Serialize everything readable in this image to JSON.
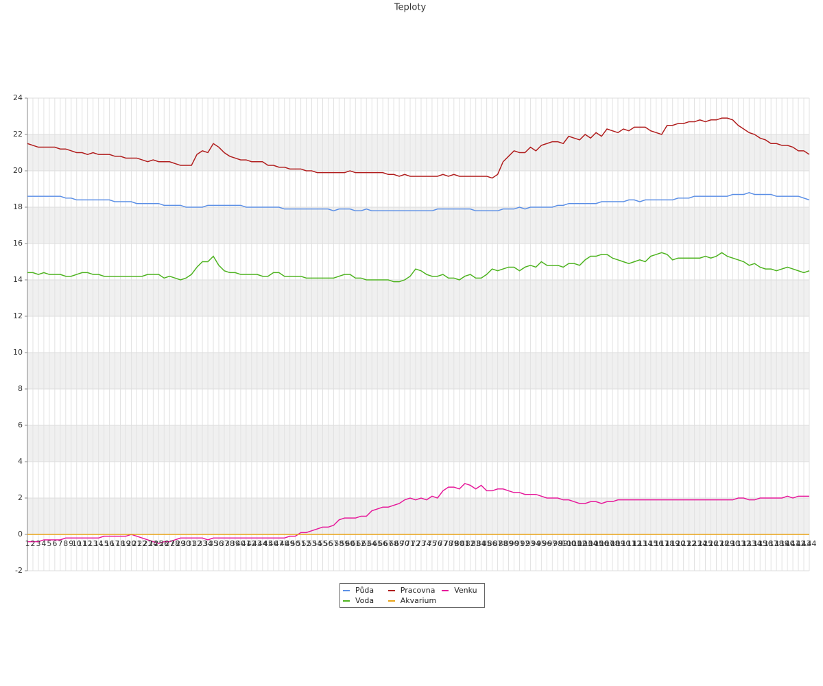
{
  "chart_data": {
    "type": "line",
    "title": "Teploty",
    "categories": [
      "1",
      "2",
      "3",
      "4",
      "5",
      "6",
      "7",
      "8",
      "9",
      "10",
      "11",
      "12",
      "13",
      "14",
      "15",
      "16",
      "17",
      "18",
      "19",
      "20",
      "21",
      "22",
      "23",
      "24",
      "25",
      "26",
      "27",
      "28",
      "29",
      "30",
      "31",
      "32",
      "33",
      "34",
      "35",
      "36",
      "37",
      "38",
      "39",
      "40",
      "41",
      "42",
      "43",
      "44",
      "45",
      "46",
      "47",
      "48",
      "49",
      "50",
      "51",
      "52",
      "53",
      "54",
      "55",
      "56",
      "57",
      "58",
      "59",
      "60",
      "61",
      "62",
      "63",
      "64",
      "65",
      "66",
      "67",
      "68",
      "69",
      "70",
      "71",
      "72",
      "73",
      "74",
      "75",
      "76",
      "77",
      "78",
      "79",
      "80",
      "81",
      "82",
      "83",
      "84",
      "85",
      "86",
      "87",
      "88",
      "89",
      "90",
      "91",
      "92",
      "93",
      "94",
      "95",
      "96",
      "97",
      "98",
      "99",
      "100",
      "101",
      "102",
      "103",
      "104",
      "105",
      "106",
      "107",
      "108",
      "109",
      "110",
      "111",
      "112",
      "113",
      "114",
      "115",
      "116",
      "117",
      "118",
      "119",
      "120",
      "121",
      "122",
      "123",
      "124",
      "125",
      "126",
      "127",
      "128",
      "129",
      "130",
      "131",
      "132",
      "133",
      "134",
      "135",
      "136",
      "137",
      "138",
      "139",
      "140",
      "141",
      "142",
      "143",
      "144"
    ],
    "series": [
      {
        "name": "Půda",
        "color": "#5b8fe6",
        "values": [
          18.6,
          18.6,
          18.6,
          18.6,
          18.6,
          18.6,
          18.6,
          18.5,
          18.5,
          18.4,
          18.4,
          18.4,
          18.4,
          18.4,
          18.4,
          18.4,
          18.3,
          18.3,
          18.3,
          18.3,
          18.2,
          18.2,
          18.2,
          18.2,
          18.2,
          18.1,
          18.1,
          18.1,
          18.1,
          18.0,
          18.0,
          18.0,
          18.0,
          18.1,
          18.1,
          18.1,
          18.1,
          18.1,
          18.1,
          18.1,
          18.0,
          18.0,
          18.0,
          18.0,
          18.0,
          18.0,
          18.0,
          17.9,
          17.9,
          17.9,
          17.9,
          17.9,
          17.9,
          17.9,
          17.9,
          17.9,
          17.8,
          17.9,
          17.9,
          17.9,
          17.8,
          17.8,
          17.9,
          17.8,
          17.8,
          17.8,
          17.8,
          17.8,
          17.8,
          17.8,
          17.8,
          17.8,
          17.8,
          17.8,
          17.8,
          17.9,
          17.9,
          17.9,
          17.9,
          17.9,
          17.9,
          17.9,
          17.8,
          17.8,
          17.8,
          17.8,
          17.8,
          17.9,
          17.9,
          17.9,
          18.0,
          17.9,
          18.0,
          18.0,
          18.0,
          18.0,
          18.0,
          18.1,
          18.1,
          18.2,
          18.2,
          18.2,
          18.2,
          18.2,
          18.2,
          18.3,
          18.3,
          18.3,
          18.3,
          18.3,
          18.4,
          18.4,
          18.3,
          18.4,
          18.4,
          18.4,
          18.4,
          18.4,
          18.4,
          18.5,
          18.5,
          18.5,
          18.6,
          18.6,
          18.6,
          18.6,
          18.6,
          18.6,
          18.6,
          18.7,
          18.7,
          18.7,
          18.8,
          18.7,
          18.7,
          18.7,
          18.7,
          18.6,
          18.6,
          18.6,
          18.6,
          18.6,
          18.5,
          18.4
        ]
      },
      {
        "name": "Pracovna",
        "color": "#b01c1c",
        "values": [
          21.5,
          21.4,
          21.3,
          21.3,
          21.3,
          21.3,
          21.2,
          21.2,
          21.1,
          21.0,
          21.0,
          20.9,
          21.0,
          20.9,
          20.9,
          20.9,
          20.8,
          20.8,
          20.7,
          20.7,
          20.7,
          20.6,
          20.5,
          20.6,
          20.5,
          20.5,
          20.5,
          20.4,
          20.3,
          20.3,
          20.3,
          20.9,
          21.1,
          21.0,
          21.5,
          21.3,
          21.0,
          20.8,
          20.7,
          20.6,
          20.6,
          20.5,
          20.5,
          20.5,
          20.3,
          20.3,
          20.2,
          20.2,
          20.1,
          20.1,
          20.1,
          20.0,
          20.0,
          19.9,
          19.9,
          19.9,
          19.9,
          19.9,
          19.9,
          20.0,
          19.9,
          19.9,
          19.9,
          19.9,
          19.9,
          19.9,
          19.8,
          19.8,
          19.7,
          19.8,
          19.7,
          19.7,
          19.7,
          19.7,
          19.7,
          19.7,
          19.8,
          19.7,
          19.8,
          19.7,
          19.7,
          19.7,
          19.7,
          19.7,
          19.7,
          19.6,
          19.8,
          20.5,
          20.8,
          21.1,
          21.0,
          21.0,
          21.3,
          21.1,
          21.4,
          21.5,
          21.6,
          21.6,
          21.5,
          21.9,
          21.8,
          21.7,
          22.0,
          21.8,
          22.1,
          21.9,
          22.3,
          22.2,
          22.1,
          22.3,
          22.2,
          22.4,
          22.4,
          22.4,
          22.2,
          22.1,
          22.0,
          22.5,
          22.5,
          22.6,
          22.6,
          22.7,
          22.7,
          22.8,
          22.7,
          22.8,
          22.8,
          22.9,
          22.9,
          22.8,
          22.5,
          22.3,
          22.1,
          22.0,
          21.8,
          21.7,
          21.5,
          21.5,
          21.4,
          21.4,
          21.3,
          21.1,
          21.1,
          20.9
        ]
      },
      {
        "name": "Venku",
        "color": "#e6199a",
        "values": [
          -0.4,
          -0.4,
          -0.4,
          -0.3,
          -0.3,
          -0.3,
          -0.3,
          -0.2,
          -0.2,
          -0.2,
          -0.2,
          -0.2,
          -0.2,
          -0.2,
          -0.1,
          -0.1,
          -0.1,
          -0.1,
          -0.1,
          0.0,
          -0.1,
          -0.2,
          -0.3,
          -0.4,
          -0.5,
          -0.4,
          -0.4,
          -0.3,
          -0.2,
          -0.2,
          -0.2,
          -0.2,
          -0.2,
          -0.3,
          -0.2,
          -0.2,
          -0.2,
          -0.2,
          -0.2,
          -0.2,
          -0.2,
          -0.2,
          -0.2,
          -0.2,
          -0.2,
          -0.2,
          -0.2,
          -0.2,
          -0.1,
          -0.1,
          0.1,
          0.1,
          0.2,
          0.3,
          0.4,
          0.4,
          0.5,
          0.8,
          0.9,
          0.9,
          0.9,
          1.0,
          1.0,
          1.3,
          1.4,
          1.5,
          1.5,
          1.6,
          1.7,
          1.9,
          2.0,
          1.9,
          2.0,
          1.9,
          2.1,
          2.0,
          2.4,
          2.6,
          2.6,
          2.5,
          2.8,
          2.7,
          2.5,
          2.7,
          2.4,
          2.4,
          2.5,
          2.5,
          2.4,
          2.3,
          2.3,
          2.2,
          2.2,
          2.2,
          2.1,
          2.0,
          2.0,
          2.0,
          1.9,
          1.9,
          1.8,
          1.7,
          1.7,
          1.8,
          1.8,
          1.7,
          1.8,
          1.8,
          1.9,
          1.9,
          1.9,
          1.9,
          1.9,
          1.9,
          1.9,
          1.9,
          1.9,
          1.9,
          1.9,
          1.9,
          1.9,
          1.9,
          1.9,
          1.9,
          1.9,
          1.9,
          1.9,
          1.9,
          1.9,
          1.9,
          2.0,
          2.0,
          1.9,
          1.9,
          2.0,
          2.0,
          2.0,
          2.0,
          2.0,
          2.1,
          2.0,
          2.1,
          2.1,
          2.1
        ]
      },
      {
        "name": "Voda",
        "color": "#4db31f",
        "values": [
          14.4,
          14.4,
          14.3,
          14.4,
          14.3,
          14.3,
          14.3,
          14.2,
          14.2,
          14.3,
          14.4,
          14.4,
          14.3,
          14.3,
          14.2,
          14.2,
          14.2,
          14.2,
          14.2,
          14.2,
          14.2,
          14.2,
          14.3,
          14.3,
          14.3,
          14.1,
          14.2,
          14.1,
          14.0,
          14.1,
          14.3,
          14.7,
          15.0,
          15.0,
          15.3,
          14.8,
          14.5,
          14.4,
          14.4,
          14.3,
          14.3,
          14.3,
          14.3,
          14.2,
          14.2,
          14.4,
          14.4,
          14.2,
          14.2,
          14.2,
          14.2,
          14.1,
          14.1,
          14.1,
          14.1,
          14.1,
          14.1,
          14.2,
          14.3,
          14.3,
          14.1,
          14.1,
          14.0,
          14.0,
          14.0,
          14.0,
          14.0,
          13.9,
          13.9,
          14.0,
          14.2,
          14.6,
          14.5,
          14.3,
          14.2,
          14.2,
          14.3,
          14.1,
          14.1,
          14.0,
          14.2,
          14.3,
          14.1,
          14.1,
          14.3,
          14.6,
          14.5,
          14.6,
          14.7,
          14.7,
          14.5,
          14.7,
          14.8,
          14.7,
          15.0,
          14.8,
          14.8,
          14.8,
          14.7,
          14.9,
          14.9,
          14.8,
          15.1,
          15.3,
          15.3,
          15.4,
          15.4,
          15.2,
          15.1,
          15.0,
          14.9,
          15.0,
          15.1,
          15.0,
          15.3,
          15.4,
          15.5,
          15.4,
          15.1,
          15.2,
          15.2,
          15.2,
          15.2,
          15.2,
          15.3,
          15.2,
          15.3,
          15.5,
          15.3,
          15.2,
          15.1,
          15.0,
          14.8,
          14.9,
          14.7,
          14.6,
          14.6,
          14.5,
          14.6,
          14.7,
          14.6,
          14.5,
          14.4,
          14.5
        ]
      },
      {
        "name": "Akvarium",
        "color": "#e8a317",
        "values": [
          0,
          0,
          0,
          0,
          0,
          0,
          0,
          0,
          0,
          0,
          0,
          0,
          0,
          0,
          0,
          0,
          0,
          0,
          0,
          0,
          0,
          0,
          0,
          0,
          0,
          0,
          0,
          0,
          0,
          0,
          0,
          0,
          0,
          0,
          0,
          0,
          0,
          0,
          0,
          0,
          0,
          0,
          0,
          0,
          0,
          0,
          0,
          0,
          0,
          0,
          0,
          0,
          0,
          0,
          0,
          0,
          0,
          0,
          0,
          0,
          0,
          0,
          0,
          0,
          0,
          0,
          0,
          0,
          0,
          0,
          0,
          0,
          0,
          0,
          0,
          0,
          0,
          0,
          0,
          0,
          0,
          0,
          0,
          0,
          0,
          0,
          0,
          0,
          0,
          0,
          0,
          0,
          0,
          0,
          0,
          0,
          0,
          0,
          0,
          0,
          0,
          0,
          0,
          0,
          0,
          0,
          0,
          0,
          0,
          0,
          0,
          0,
          0,
          0,
          0,
          0,
          0,
          0,
          0,
          0,
          0,
          0,
          0,
          0,
          0,
          0,
          0,
          0,
          0,
          0,
          0,
          0,
          0,
          0,
          0,
          0,
          0,
          0,
          0,
          0,
          0,
          0,
          0,
          0
        ]
      }
    ],
    "ylim": [
      -2,
      24
    ],
    "yticks": [
      -2,
      0,
      2,
      4,
      6,
      8,
      10,
      12,
      14,
      16,
      18,
      20,
      22,
      24
    ],
    "grid": true,
    "legend": "bottom"
  }
}
